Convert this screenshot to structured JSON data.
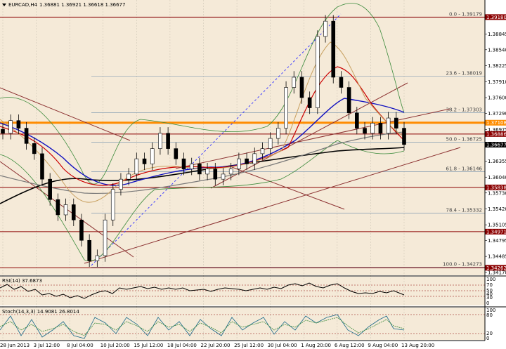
{
  "header": {
    "symbol_label": "EURCAD,H4",
    "ohlc": "1.36881 1.36921 1.36618 1.36677"
  },
  "price_axis": {
    "ticks": [
      "1.38845",
      "1.38540",
      "1.38225",
      "1.37910",
      "1.37600",
      "1.37290",
      "1.36975",
      "1.36665",
      "1.36355",
      "1.36040",
      "1.35730",
      "1.35420",
      "1.35105",
      "1.34795",
      "1.34485",
      "1.34170"
    ],
    "ymin": 1.3417,
    "ymax": 1.3935
  },
  "price_tags": [
    {
      "label": "1.39180",
      "value": 1.3918,
      "color": "#8b0000"
    },
    {
      "label": "1.37108",
      "value": 1.37108,
      "color": "#ff8c00"
    },
    {
      "label": "1.36886",
      "value": 1.36886,
      "color": "#8b0000"
    },
    {
      "label": "1.36677",
      "value": 1.36677,
      "color": "#000000"
    },
    {
      "label": "1.35838",
      "value": 1.35838,
      "color": "#8b0000"
    },
    {
      "label": "1.34971",
      "value": 1.34971,
      "color": "#8b0000"
    },
    {
      "label": "1.34262",
      "value": 1.34262,
      "color": "#8b0000"
    }
  ],
  "fibo_levels": [
    {
      "label": "0.0 - 1.39179",
      "value": 1.39179
    },
    {
      "label": "23.6 - 1.38019",
      "value": 1.38019
    },
    {
      "label": "38.2 - 1.37303",
      "value": 1.37303
    },
    {
      "label": "50.0 - 1.36725",
      "value": 1.36725
    },
    {
      "label": "61.8 - 1.36146",
      "value": 1.36146
    },
    {
      "label": "78.4 - 1.35332",
      "value": 1.35332
    },
    {
      "label": "100.0 - 1.34273",
      "value": 1.34273
    }
  ],
  "time_axis": {
    "labels": [
      "28 Jun 2013",
      "3 Jul 12:00",
      "8 Jul 04:00",
      "10 Jul 20:00",
      "15 Jul 12:00",
      "18 Jul 04:00",
      "22 Jul 20:00",
      "25 Jul 12:00",
      "30 Jul 04:00",
      "1 Aug 20:00",
      "6 Aug 12:00",
      "9 Aug 04:00",
      "13 Aug 20:00"
    ]
  },
  "rsi": {
    "label": "RSI(14) 37.6873",
    "ticks": [
      "100",
      "70",
      "50",
      "40",
      "30",
      "0"
    ]
  },
  "stoch": {
    "label": "Stoch(14,3,3) 14.9081 26.8014",
    "ticks": [
      "100",
      "80",
      "20",
      "0"
    ]
  },
  "colors": {
    "background": "#f5ead8",
    "orange_line": "#ff8c00",
    "dark_red_line": "#8b0000",
    "blue_ma": "#1010c0",
    "red_ma": "#cc0000",
    "black_ma": "#000000"
  },
  "chart_data": {
    "type": "candlestick",
    "symbol": "EURCAD,H4",
    "close": [
      1.369,
      1.3715,
      1.37,
      1.367,
      1.365,
      1.36,
      1.356,
      1.353,
      1.355,
      1.352,
      1.348,
      1.344,
      1.345,
      1.352,
      1.358,
      1.36,
      1.361,
      1.364,
      1.363,
      1.366,
      1.369,
      1.366,
      1.364,
      1.362,
      1.363,
      1.361,
      1.362,
      1.36,
      1.361,
      1.362,
      1.364,
      1.363,
      1.365,
      1.366,
      1.368,
      1.37,
      1.378,
      1.38,
      1.376,
      1.374,
      1.388,
      1.391,
      1.38,
      1.378,
      1.373,
      1.37,
      1.369,
      1.371,
      1.369,
      1.372,
      1.37,
      1.3668
    ],
    "last_close": 1.36677
  }
}
